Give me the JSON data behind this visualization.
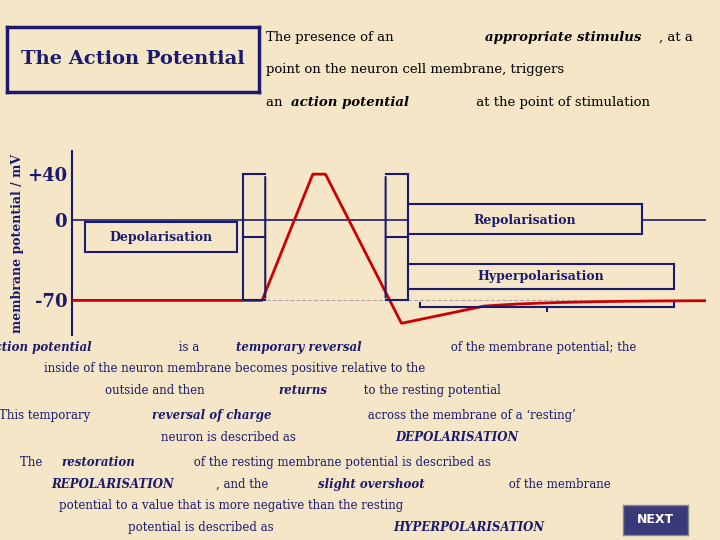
{
  "background_color": "#f5e6c8",
  "title_box_text": "The Action Potential",
  "title_box_color": "#f5e6c8",
  "title_box_border": "#1a1a6e",
  "header_text_line1": "The presence of an ",
  "header_italic1": "appropriate stimulus",
  "header_text_line1b": ", at a",
  "header_text_line2": "point on the neuron cell membrane, triggers",
  "header_text_line3": "an ",
  "header_italic2": "action potential",
  "header_text_line3b": " at the point of stimulation",
  "ylabel": "membrane potential / mV",
  "yticks": [
    40,
    0,
    -70
  ],
  "ytick_labels": [
    "+40",
    "0",
    "-70"
  ],
  "line_color": "#cc0000",
  "axis_color": "#1a1a6e",
  "label_color": "#1a1a6e",
  "depol_label": "Depolarisation",
  "repol_label": "Repolarisation",
  "hyperpol_label": "Hyperpolarisation",
  "next_button_color": "#3a3a7a",
  "next_button_text": "NEXT",
  "body_text": [
    "An {action potential} is a {temporary reversal} of the membrane potential; the",
    "inside of the neuron membrane becomes positive relative to the",
    "outside and then {returns} to the resting potential",
    "This temporary {reversal of charge} across the membrane of a ‘resting’",
    "neuron is described as {DEPOLARISATION}",
    "The {restoration} of the resting membrane potential is described as",
    "{REPOLARISATION}, and the {slight overshoot} of the membrane",
    "potential to a value that is more negative than the resting",
    "potential is described as {HYPERPOLARISATION}"
  ]
}
